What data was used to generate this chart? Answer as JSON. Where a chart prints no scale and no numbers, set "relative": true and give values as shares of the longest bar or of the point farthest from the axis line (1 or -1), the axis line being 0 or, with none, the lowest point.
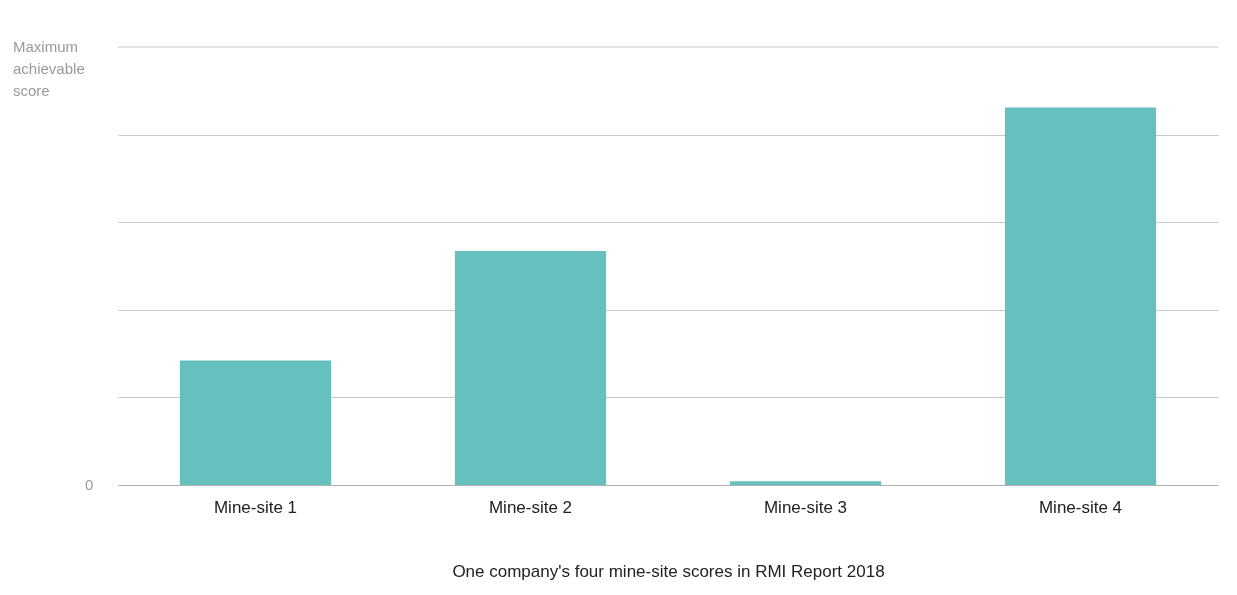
{
  "chart_data": {
    "type": "bar",
    "xlabel": "One company's four mine-site scores in RMI Report 2018",
    "categories": [
      "Mine-site 1",
      "Mine-site 2",
      "Mine-site 3",
      "Mine-site 4"
    ],
    "values": [
      0.33,
      0.62,
      0.01,
      1
    ],
    "color": "#66c0be",
    "relative": true,
    "ref_lines": [
      {
        "axis": "y",
        "value": 1.16,
        "label": "Maximum achievable score",
        "color": "#c8c8c8"
      }
    ],
    "annotations": [
      "0"
    ],
    "grid": "y"
  }
}
